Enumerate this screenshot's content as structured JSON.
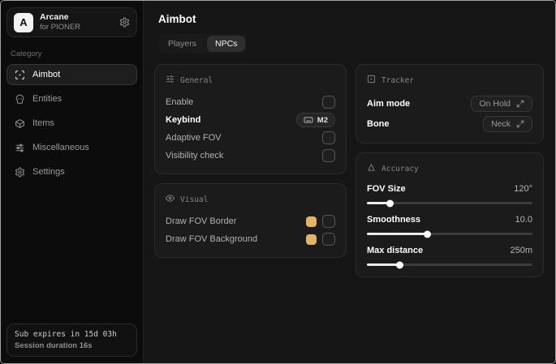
{
  "sidebar": {
    "logo_letter": "A",
    "app_name": "Arcane",
    "app_subtitle": "for PIONER",
    "category_label": "Category",
    "items": [
      {
        "label": "Aimbot",
        "icon": "crosshair-scan-icon",
        "selected": true
      },
      {
        "label": "Entities",
        "icon": "skull-icon",
        "selected": false
      },
      {
        "label": "Items",
        "icon": "package-icon",
        "selected": false
      },
      {
        "label": "Miscellaneous",
        "icon": "sliders-icon",
        "selected": false
      },
      {
        "label": "Settings",
        "icon": "gear-icon",
        "selected": false
      }
    ],
    "footer": {
      "sub_expiry": "Sub expires in 15d 03h",
      "session_duration": "Session duration 16s"
    }
  },
  "main": {
    "title": "Aimbot",
    "tabs": [
      {
        "label": "Players",
        "selected": false
      },
      {
        "label": "NPCs",
        "selected": true
      }
    ],
    "cards": {
      "general": {
        "title": "General",
        "rows": [
          {
            "label": "Enable",
            "control": "checkbox",
            "checked": false
          },
          {
            "label": "Keybind",
            "control": "keybind",
            "value": "M2"
          },
          {
            "label": "Adaptive FOV",
            "control": "checkbox",
            "checked": false
          },
          {
            "label": "Visibility check",
            "control": "checkbox",
            "checked": false
          }
        ]
      },
      "visual": {
        "title": "Visual",
        "rows": [
          {
            "label": "Draw FOV Border",
            "control": "color-checkbox",
            "color": "#e2b269",
            "checked": false
          },
          {
            "label": "Draw FOV Background",
            "control": "color-checkbox",
            "color": "#e2b269",
            "checked": false
          }
        ]
      },
      "tracker": {
        "title": "Tracker",
        "rows": [
          {
            "label": "Aim mode",
            "control": "select",
            "value": "On Hold"
          },
          {
            "label": "Bone",
            "control": "select",
            "value": "Neck"
          }
        ]
      },
      "accuracy": {
        "title": "Accuracy",
        "rows": [
          {
            "label": "FOV Size",
            "control": "slider",
            "value": "120°",
            "percent": 14
          },
          {
            "label": "Smoothness",
            "control": "slider",
            "value": "10.0",
            "percent": 37
          },
          {
            "label": "Max distance",
            "control": "slider",
            "value": "250m",
            "percent": 20
          }
        ]
      }
    }
  },
  "colors": {
    "accent_swatch": "#e2b269"
  }
}
